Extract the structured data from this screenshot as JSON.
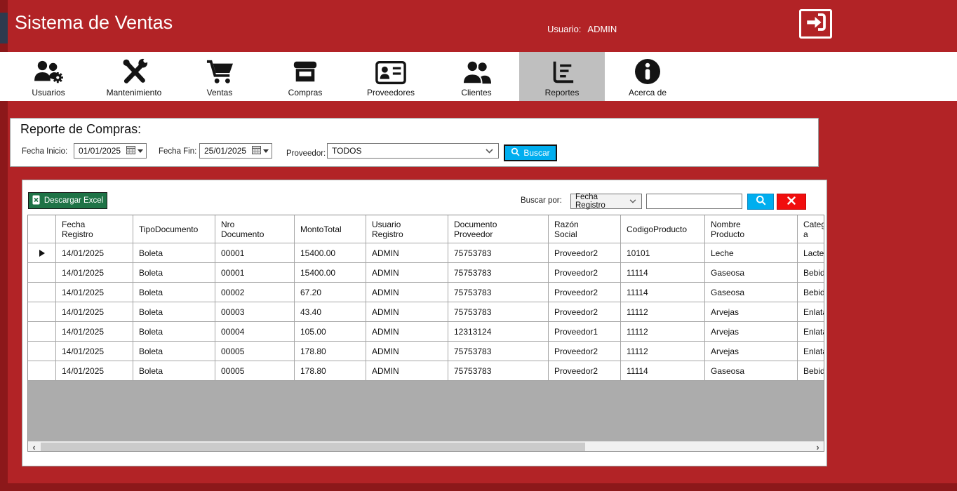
{
  "titlebar": {
    "app_title": "Sistema de Ventas",
    "user_label": "Usuario:",
    "user_name": "ADMIN",
    "logout_icon": "sign-out-icon"
  },
  "nav": {
    "active_item": "Reportes",
    "items": [
      {
        "label": "Usuarios",
        "icon": "users-gear-icon"
      },
      {
        "label": "Mantenimiento",
        "icon": "tools-icon"
      },
      {
        "label": "Ventas",
        "icon": "shopping-cart-icon"
      },
      {
        "label": "Compras",
        "icon": "storefront-icon"
      },
      {
        "label": "Proveedores",
        "icon": "id-card-icon"
      },
      {
        "label": "Clientes",
        "icon": "people-icon"
      },
      {
        "label": "Reportes",
        "icon": "report-chart-icon"
      },
      {
        "label": "Acerca de",
        "icon": "info-circle-icon"
      }
    ]
  },
  "filter_panel": {
    "title": "Reporte de Compras:",
    "fecha_inicio": {
      "label": "Fecha Inicio:",
      "value": "01/01/2025"
    },
    "fecha_fin": {
      "label": "Fecha Fin:",
      "value": "25/01/2025"
    },
    "proveedor": {
      "label": "Proveedor:",
      "value": "TODOS"
    },
    "buscar_button": "Buscar"
  },
  "report_panel": {
    "descargar_excel_button": "Descargar Excel",
    "buscar_por_label": "Buscar por:",
    "buscar_por_value": "Fecha Registro",
    "search_input": {
      "value": "",
      "placeholder": ""
    }
  },
  "table": {
    "selected_row_index": 0,
    "columns": [
      "Fecha\nRegistro",
      "TipoDocumento",
      "Nro\nDocumento",
      "MontoTotal",
      "Usuario\nRegistro",
      "Documento\nProveedor",
      "Razón\nSocial",
      "CodigoProducto",
      "Nombre\nProducto",
      "Categoría"
    ],
    "rows": [
      [
        "14/01/2025",
        "Boleta",
        "00001",
        "15400.00",
        "ADMIN",
        "75753783",
        "Proveedor2",
        "10101",
        "Leche",
        "Lacteos"
      ],
      [
        "14/01/2025",
        "Boleta",
        "00001",
        "15400.00",
        "ADMIN",
        "75753783",
        "Proveedor2",
        "11114",
        "Gaseosa",
        "Bebidas"
      ],
      [
        "14/01/2025",
        "Boleta",
        "00002",
        "67.20",
        "ADMIN",
        "75753783",
        "Proveedor2",
        "11114",
        "Gaseosa",
        "Bebidas"
      ],
      [
        "14/01/2025",
        "Boleta",
        "00003",
        "43.40",
        "ADMIN",
        "75753783",
        "Proveedor2",
        "11112",
        "Arvejas",
        "Enlatados"
      ],
      [
        "14/01/2025",
        "Boleta",
        "00004",
        "105.00",
        "ADMIN",
        "12313124",
        "Proveedor1",
        "11112",
        "Arvejas",
        "Enlatados"
      ],
      [
        "14/01/2025",
        "Boleta",
        "00005",
        "178.80",
        "ADMIN",
        "75753783",
        "Proveedor2",
        "11112",
        "Arvejas",
        "Enlatados"
      ],
      [
        "14/01/2025",
        "Boleta",
        "00005",
        "178.80",
        "ADMIN",
        "75753783",
        "Proveedor2",
        "11114",
        "Gaseosa",
        "Bebidas"
      ]
    ]
  },
  "colors": {
    "primary_red": "#B22326",
    "edge_dark_red": "#8C181A",
    "edge_navy": "#2E3A4E",
    "active_nav_bg": "#BFBFBF",
    "buscar_cyan": "#00AEEF",
    "excel_green": "#1E7346",
    "clear_red": "#F10E0E",
    "grid_filler_gray": "#ACACAC"
  }
}
